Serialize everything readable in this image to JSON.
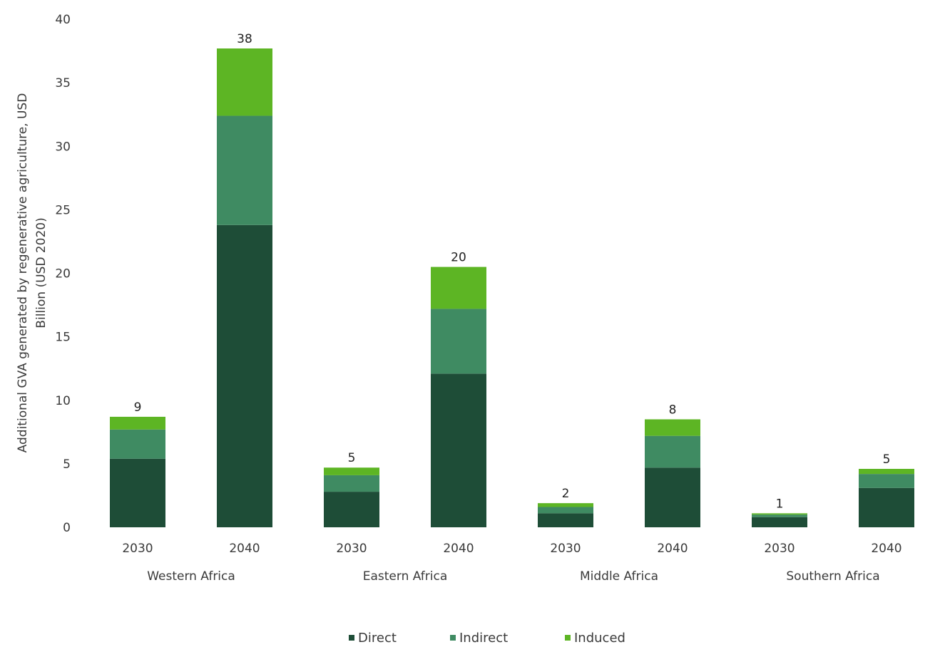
{
  "chart_data": {
    "type": "bar",
    "stacked": true,
    "ylabel_lines": [
      "Additional GVA generated by regenerative agriculture, USD",
      "Billion (USD 2020)"
    ],
    "ylim": [
      0,
      40
    ],
    "yticks": [
      0,
      5,
      10,
      15,
      20,
      25,
      30,
      35,
      40
    ],
    "groups": [
      "Western Africa",
      "Eastern Africa",
      "Middle Africa",
      "Southern Africa"
    ],
    "categories": [
      "2030",
      "2040",
      "2030",
      "2040",
      "2030",
      "2040",
      "2030",
      "2040"
    ],
    "series": [
      {
        "name": "Direct",
        "color": "#1e4d37",
        "values": [
          5.4,
          23.8,
          2.8,
          12.1,
          1.1,
          4.7,
          0.8,
          3.1
        ]
      },
      {
        "name": "Indirect",
        "color": "#3f8b62",
        "values": [
          2.3,
          8.6,
          1.3,
          5.1,
          0.5,
          2.5,
          0.2,
          1.1
        ]
      },
      {
        "name": "Induced",
        "color": "#5db524",
        "values": [
          1.0,
          5.3,
          0.6,
          3.3,
          0.3,
          1.3,
          0.1,
          0.4
        ]
      }
    ],
    "totals": [
      "9",
      "38",
      "5",
      "20",
      "2",
      "8",
      "1",
      "5"
    ],
    "legend_position": "bottom"
  }
}
